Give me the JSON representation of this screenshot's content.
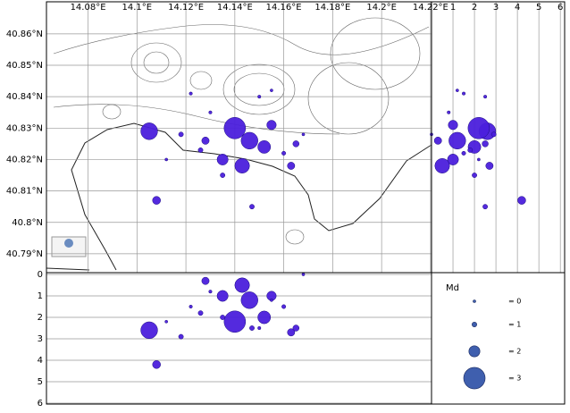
{
  "chart_data": [
    {
      "type": "scatter",
      "x": [
        14.105,
        14.108,
        14.14,
        14.146,
        14.152,
        14.135,
        14.143,
        14.155,
        14.163,
        14.147,
        14.126,
        14.118,
        14.122,
        14.13,
        14.15,
        14.155,
        14.135,
        14.128,
        14.16,
        14.112,
        14.168,
        14.165
      ],
      "values": [
        40.829,
        40.807,
        40.83,
        40.826,
        40.824,
        40.82,
        40.818,
        40.831,
        40.818,
        40.805,
        40.823,
        40.828,
        40.841,
        40.835,
        40.84,
        40.842,
        40.815,
        40.826,
        40.822,
        40.82,
        40.828,
        40.825
      ],
      "sizes": [
        2.6,
        1.6,
        3.0,
        2.6,
        2.2,
        2.0,
        2.4,
        1.8,
        1.5,
        1.0,
        1.0,
        1.0,
        0.5,
        0.5,
        0.5,
        0.3,
        1.0,
        1.5,
        0.8,
        0.3,
        0.3,
        1.3
      ],
      "xlim": [
        14.063,
        14.2204
      ],
      "ylim": [
        40.784,
        40.8702
      ],
      "xticks": [
        {
          "value": 14.08,
          "label": "14.08°E"
        },
        {
          "value": 14.1,
          "label": "14.1°E"
        },
        {
          "value": 14.12,
          "label": "14.12°E"
        },
        {
          "value": 14.14,
          "label": "14.14°E"
        },
        {
          "value": 14.16,
          "label": "14.16°E"
        },
        {
          "value": 14.18,
          "label": "14.18°E"
        },
        {
          "value": 14.2,
          "label": "14.2°E"
        },
        {
          "value": 14.22,
          "label": "14.22°E"
        }
      ],
      "yticks": [
        {
          "value": 40.79,
          "label": "40.79°N"
        },
        {
          "value": 40.8,
          "label": "40.8°N"
        },
        {
          "value": 40.81,
          "label": "40.81°N"
        },
        {
          "value": 40.82,
          "label": "40.82°N"
        },
        {
          "value": 40.83,
          "label": "40.83°N"
        },
        {
          "value": 40.84,
          "label": "40.84°N"
        },
        {
          "value": 40.85,
          "label": "40.85°N"
        },
        {
          "value": 40.86,
          "label": "40.86°N"
        }
      ],
      "grid": "both",
      "color": "#4b1fdc"
    },
    {
      "type": "scatter",
      "x": [
        2.6,
        4.2,
        2.2,
        1.2,
        2.0,
        1.0,
        0.5,
        1.0,
        2.7,
        2.5,
        1.8,
        2.9,
        1.5,
        0.8,
        2.5,
        1.2,
        2.0,
        0.3,
        1.5,
        2.2,
        0.0,
        2.5
      ],
      "values": [
        40.829,
        40.807,
        40.83,
        40.826,
        40.824,
        40.82,
        40.818,
        40.831,
        40.818,
        40.805,
        40.823,
        40.828,
        40.841,
        40.835,
        40.84,
        40.842,
        40.815,
        40.826,
        40.822,
        40.82,
        40.828,
        40.825
      ],
      "sizes": [
        2.6,
        1.6,
        3.0,
        2.6,
        2.2,
        2.0,
        2.4,
        1.8,
        1.5,
        1.0,
        1.0,
        1.0,
        0.5,
        0.5,
        0.5,
        0.3,
        1.0,
        1.5,
        0.8,
        0.3,
        0.3,
        1.3
      ],
      "xlim": [
        0,
        6.2
      ],
      "ylim": [
        40.784,
        40.8702
      ],
      "xticks": [
        1,
        2,
        3,
        4,
        5,
        6
      ],
      "grid": "x",
      "color": "#4b1fdc"
    },
    {
      "type": "scatter",
      "x": [
        14.105,
        14.108,
        14.14,
        14.146,
        14.152,
        14.135,
        14.143,
        14.155,
        14.163,
        14.147,
        14.126,
        14.118,
        14.122,
        14.13,
        14.15,
        14.155,
        14.135,
        14.128,
        14.16,
        14.112,
        14.168,
        14.165
      ],
      "values": [
        2.6,
        4.2,
        2.2,
        1.2,
        2.0,
        1.0,
        0.5,
        1.0,
        2.7,
        2.5,
        1.8,
        2.9,
        1.5,
        0.8,
        2.5,
        1.2,
        2.0,
        0.3,
        1.5,
        2.2,
        0.0,
        2.5
      ],
      "sizes": [
        2.6,
        1.6,
        3.0,
        2.6,
        2.2,
        2.0,
        2.4,
        1.8,
        1.5,
        1.0,
        1.0,
        1.0,
        0.5,
        0.5,
        0.5,
        0.3,
        1.0,
        1.5,
        0.8,
        0.3,
        0.3,
        1.3
      ],
      "xlim": [
        14.063,
        14.2204
      ],
      "ylim": [
        6,
        0
      ],
      "yticks": [
        0,
        1,
        2,
        3,
        4,
        5,
        6
      ],
      "grid": "y",
      "color": "#4b1fdc"
    },
    {
      "type": "size_legend",
      "title": "Md",
      "values": [
        0,
        1,
        2,
        3
      ],
      "labels": [
        "= 0",
        "= 1",
        "= 2",
        "= 3"
      ],
      "color": "#3f5fae"
    }
  ]
}
